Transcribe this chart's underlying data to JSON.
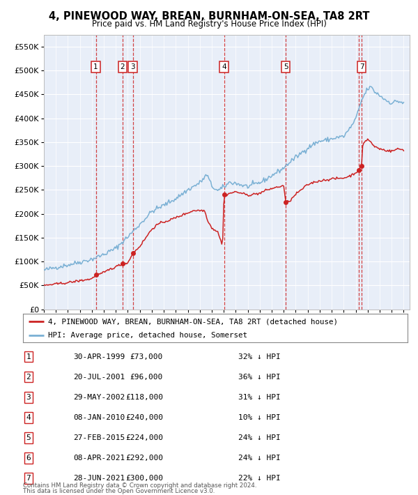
{
  "title": "4, PINEWOOD WAY, BREAN, BURNHAM-ON-SEA, TA8 2RT",
  "subtitle": "Price paid vs. HM Land Registry's House Price Index (HPI)",
  "bg_color": "#ffffff",
  "plot_bg_color": "#e8eef8",
  "grid_color": "#ffffff",
  "hpi_color": "#7ab0d4",
  "price_color": "#cc2222",
  "ylim": [
    0,
    575000
  ],
  "yticks": [
    0,
    50000,
    100000,
    150000,
    200000,
    250000,
    300000,
    350000,
    400000,
    450000,
    500000,
    550000
  ],
  "xlim_start": 1995.0,
  "xlim_end": 2025.5,
  "transactions": [
    {
      "num": 1,
      "year": 1999.33,
      "price": 73000
    },
    {
      "num": 2,
      "year": 2001.55,
      "price": 96000
    },
    {
      "num": 3,
      "year": 2002.41,
      "price": 118000
    },
    {
      "num": 4,
      "year": 2010.02,
      "price": 240000
    },
    {
      "num": 5,
      "year": 2015.16,
      "price": 224000
    },
    {
      "num": 6,
      "year": 2021.27,
      "price": 292000
    },
    {
      "num": 7,
      "year": 2021.49,
      "price": 300000
    }
  ],
  "show_label": [
    1,
    2,
    3,
    4,
    5,
    7
  ],
  "legend_line1": "4, PINEWOOD WAY, BREAN, BURNHAM-ON-SEA, TA8 2RT (detached house)",
  "legend_line2": "HPI: Average price, detached house, Somerset",
  "footer1": "Contains HM Land Registry data © Crown copyright and database right 2024.",
  "footer2": "This data is licensed under the Open Government Licence v3.0.",
  "table_rows": [
    {
      "num": 1,
      "date": "30-APR-1999",
      "price": "£73,000",
      "pct": "32% ↓ HPI"
    },
    {
      "num": 2,
      "date": "20-JUL-2001",
      "price": "£96,000",
      "pct": "36% ↓ HPI"
    },
    {
      "num": 3,
      "date": "29-MAY-2002",
      "price": "£118,000",
      "pct": "31% ↓ HPI"
    },
    {
      "num": 4,
      "date": "08-JAN-2010",
      "price": "£240,000",
      "pct": "10% ↓ HPI"
    },
    {
      "num": 5,
      "date": "27-FEB-2015",
      "price": "£224,000",
      "pct": "24% ↓ HPI"
    },
    {
      "num": 6,
      "date": "08-APR-2021",
      "price": "£292,000",
      "pct": "24% ↓ HPI"
    },
    {
      "num": 7,
      "date": "28-JUN-2021",
      "price": "£300,000",
      "pct": "22% ↓ HPI"
    }
  ]
}
